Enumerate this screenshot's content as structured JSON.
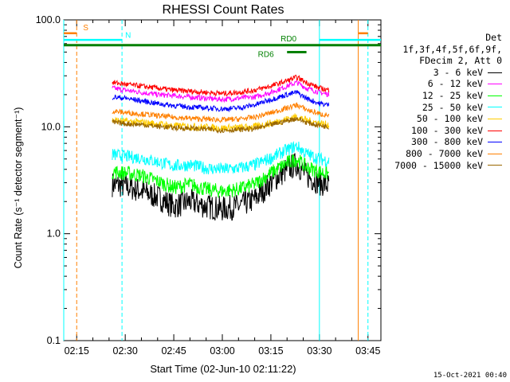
{
  "chart_data": {
    "type": "line",
    "title": "RHESSI Count Rates",
    "xlabel": "Start Time (02-Jun-10 02:11:22)",
    "ylabel": "Count Rate (s⁻¹ detector segment⁻¹)",
    "y_scale": "log",
    "ylim": [
      0.1,
      100.0
    ],
    "y_ticks": [
      "100.0",
      "10.0",
      "1.0",
      "0.1"
    ],
    "xlim": [
      "02:11",
      "03:49"
    ],
    "x_ticks": [
      "02:15",
      "02:30",
      "02:45",
      "03:00",
      "03:15",
      "03:30",
      "03:45"
    ],
    "legend_header": [
      "Det 1f,3f,4f,5f,6f,9f,",
      "FDecim 2, Att 0"
    ],
    "legend_position": "right",
    "series": [
      {
        "name": "3 - 6 keV",
        "color": "#000000",
        "x": [
          "02:26",
          "02:30",
          "02:35",
          "02:40",
          "02:45",
          "02:50",
          "02:55",
          "03:00",
          "03:05",
          "03:10",
          "03:15",
          "03:20",
          "03:23",
          "03:26",
          "03:30",
          "03:33"
        ],
        "values": [
          2.9,
          2.8,
          2.5,
          2.2,
          1.8,
          2.0,
          1.8,
          1.7,
          1.8,
          2.1,
          3.0,
          4.0,
          4.5,
          3.5,
          3.0,
          2.8
        ]
      },
      {
        "name": "6 - 12 keV",
        "color": "#ff00ff",
        "x": [
          "02:26",
          "02:30",
          "02:35",
          "02:40",
          "02:45",
          "02:50",
          "02:55",
          "03:00",
          "03:05",
          "03:10",
          "03:15",
          "03:20",
          "03:23",
          "03:26",
          "03:30",
          "03:33"
        ],
        "values": [
          23,
          22,
          21,
          20,
          19.5,
          19,
          18.5,
          18,
          18.5,
          19,
          21,
          24,
          26,
          23,
          21,
          20
        ]
      },
      {
        "name": "12 - 25 keV",
        "color": "#00ff00",
        "x": [
          "02:26",
          "02:30",
          "02:35",
          "02:40",
          "02:45",
          "02:50",
          "02:55",
          "03:00",
          "03:05",
          "03:10",
          "03:15",
          "03:20",
          "03:23",
          "03:26",
          "03:30",
          "03:33"
        ],
        "values": [
          3.8,
          3.7,
          3.5,
          3.1,
          2.7,
          2.9,
          2.6,
          2.5,
          2.6,
          2.9,
          3.7,
          4.6,
          5.0,
          4.2,
          3.8,
          3.6
        ]
      },
      {
        "name": "25 - 50 keV",
        "color": "#00ffff",
        "x": [
          "02:26",
          "02:30",
          "02:35",
          "02:40",
          "02:45",
          "02:50",
          "02:55",
          "03:00",
          "03:05",
          "03:10",
          "03:15",
          "03:20",
          "03:23",
          "03:26",
          "03:30",
          "03:33"
        ],
        "values": [
          5.5,
          5.3,
          5.1,
          4.7,
          4.3,
          4.4,
          4.1,
          4.0,
          4.1,
          4.4,
          5.1,
          6.1,
          6.6,
          5.6,
          5.0,
          4.8
        ]
      },
      {
        "name": "50 - 100 keV",
        "color": "#ffcc00",
        "x": [
          "02:26",
          "02:30",
          "02:35",
          "02:40",
          "02:45",
          "02:50",
          "02:55",
          "03:00",
          "03:05",
          "03:10",
          "03:15",
          "03:20",
          "03:23",
          "03:26",
          "03:30",
          "03:33"
        ],
        "values": [
          11.5,
          11.2,
          11.0,
          10.6,
          10.2,
          10.1,
          9.9,
          9.7,
          9.8,
          10.0,
          10.8,
          11.8,
          12.5,
          11.5,
          10.8,
          10.4
        ]
      },
      {
        "name": "100 - 300 keV",
        "color": "#ff0000",
        "x": [
          "02:26",
          "02:30",
          "02:35",
          "02:40",
          "02:45",
          "02:50",
          "02:55",
          "03:00",
          "03:05",
          "03:10",
          "03:15",
          "03:20",
          "03:23",
          "03:26",
          "03:30",
          "03:33"
        ],
        "values": [
          26,
          25,
          24,
          23,
          22,
          21.5,
          21,
          20.5,
          21,
          22,
          24,
          27,
          29,
          26,
          23,
          22
        ]
      },
      {
        "name": "300 - 800 keV",
        "color": "#0000ff",
        "x": [
          "02:26",
          "02:30",
          "02:35",
          "02:40",
          "02:45",
          "02:50",
          "02:55",
          "03:00",
          "03:05",
          "03:10",
          "03:15",
          "03:20",
          "03:23",
          "03:26",
          "03:30",
          "03:33"
        ],
        "values": [
          19,
          18.5,
          17.5,
          16.5,
          15.8,
          15.3,
          15,
          14.7,
          15,
          16,
          18,
          20,
          21,
          18.5,
          16.5,
          16
        ]
      },
      {
        "name": "800 - 7000 keV",
        "color": "#ff8000",
        "x": [
          "02:26",
          "02:30",
          "02:35",
          "02:40",
          "02:45",
          "02:50",
          "02:55",
          "03:00",
          "03:05",
          "03:10",
          "03:15",
          "03:20",
          "03:23",
          "03:26",
          "03:30",
          "03:33"
        ],
        "values": [
          14,
          13.6,
          13.2,
          12.7,
          12.3,
          12.0,
          11.8,
          11.6,
          11.8,
          12.3,
          13.5,
          15.0,
          16.0,
          14.5,
          13.2,
          12.8
        ]
      },
      {
        "name": "7000 - 15000 keV",
        "color": "#996600",
        "x": [
          "02:26",
          "02:30",
          "02:35",
          "02:40",
          "02:45",
          "02:50",
          "02:55",
          "03:00",
          "03:05",
          "03:10",
          "03:15",
          "03:20",
          "03:23",
          "03:26",
          "03:30",
          "03:33"
        ],
        "values": [
          11.0,
          10.7,
          10.5,
          10.1,
          9.8,
          9.7,
          9.5,
          9.3,
          9.4,
          9.6,
          10.4,
          11.4,
          12.0,
          11.0,
          10.3,
          10.0
        ]
      }
    ],
    "annotations": [
      {
        "text": "S",
        "color": "#ff8000"
      },
      {
        "text": "N",
        "color": "#00ffff"
      },
      {
        "text": "RD0",
        "color": "#008000"
      },
      {
        "text": "RD6",
        "color": "#008000"
      }
    ],
    "markers": {
      "saa": {
        "x": [
          "02:15",
          "03:42"
        ],
        "color": "#ff8000"
      },
      "night": {
        "x": [
          "02:11",
          "02:29",
          "03:30",
          "03:45"
        ],
        "color": "#00ffff"
      },
      "attenuator_bar": {
        "x": [
          "02:11",
          "03:49"
        ],
        "y": 58,
        "color": "#008000"
      },
      "rd0": {
        "x": [
          "03:20",
          "03:26"
        ],
        "y": 50,
        "color": "#008000"
      },
      "saa_top": {
        "x": [
          [
            "02:11",
            "02:15"
          ],
          [
            "03:42",
            "03:45"
          ]
        ],
        "y": 75
      },
      "night_top": {
        "x": [
          [
            "02:11",
            "02:29"
          ],
          [
            "03:30",
            "03:49"
          ]
        ],
        "y": 65
      }
    }
  },
  "footer_timestamp": "15-Oct-2021 00:40"
}
